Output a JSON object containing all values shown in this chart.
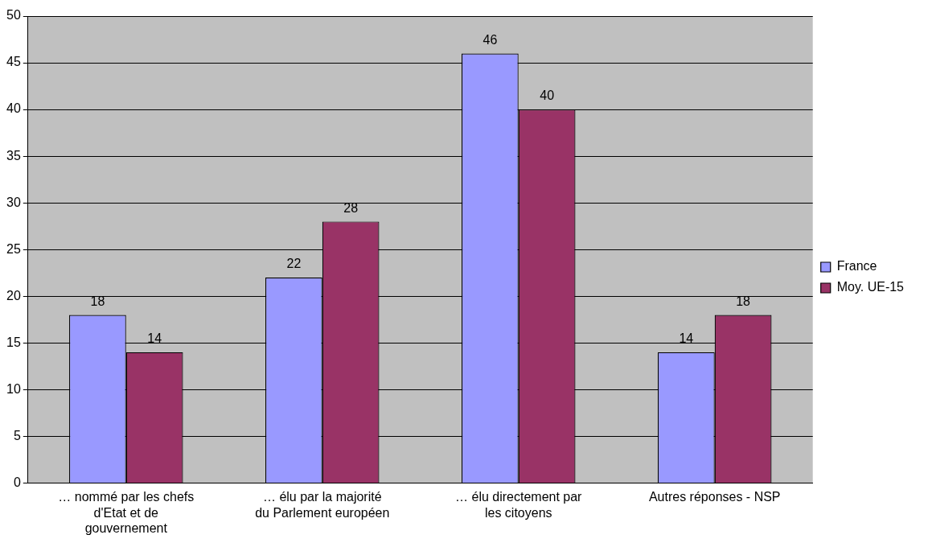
{
  "chart_data": {
    "type": "bar",
    "categories": [
      "… nommé par les chefs d'Etat et de gouvernement",
      "… élu par la majorité du Parlement européen",
      "… élu directement par les citoyens",
      "Autres réponses - NSP"
    ],
    "series": [
      {
        "name": "France",
        "color": "#9999ff",
        "values": [
          18,
          22,
          46,
          14
        ]
      },
      {
        "name": "Moy. UE-15",
        "color": "#993366",
        "values": [
          14,
          28,
          40,
          18
        ]
      }
    ],
    "ylim": [
      0,
      50
    ],
    "yticks": [
      0,
      5,
      10,
      15,
      20,
      25,
      30,
      35,
      40,
      45,
      50
    ],
    "grid": "y",
    "legend": "right",
    "data_labels": true
  }
}
